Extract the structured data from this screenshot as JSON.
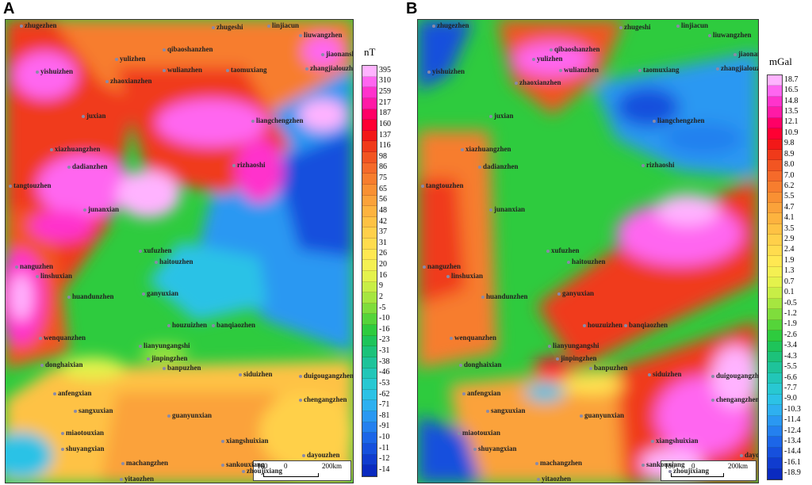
{
  "panel_a": {
    "letter": "A",
    "unit": "nT",
    "legend_values": [
      "395",
      "310",
      "259",
      "217",
      "187",
      "160",
      "137",
      "116",
      "98",
      "86",
      "75",
      "65",
      "56",
      "48",
      "42",
      "37",
      "31",
      "26",
      "20",
      "16",
      "9",
      "2",
      "-5",
      "-10",
      "-16",
      "-23",
      "-31",
      "-38",
      "-46",
      "-53",
      "-62",
      "-71",
      "-81",
      "-91",
      "-10",
      "-11",
      "-12",
      "-14"
    ],
    "legend_colors": [
      "#ffb3ff",
      "#ff66f0",
      "#ff33cc",
      "#ff1aa6",
      "#ff0066",
      "#ff0033",
      "#f21818",
      "#f03a1a",
      "#f25522",
      "#f56a2a",
      "#f77d2e",
      "#f99033",
      "#fba23a",
      "#fdb33f",
      "#fec244",
      "#ffd04a",
      "#ffdc4e",
      "#ffe852",
      "#f4f052",
      "#e4f24c",
      "#c8ee46",
      "#a6e640",
      "#7fdd3c",
      "#55d43a",
      "#2ecb3e",
      "#1ec45a",
      "#1cc27a",
      "#1ec39a",
      "#22c6b8",
      "#28c8d2",
      "#2cc2e6",
      "#2eb0f0",
      "#2a98f2",
      "#2480ef",
      "#1c66e8",
      "#1650dd",
      "#103ccf",
      "#0a2ac0"
    ],
    "places": [
      "zhugezhen",
      "zhugeshi",
      "linjiacun",
      "liuwangzhen",
      "jiaonanshi",
      "zhangjialouzhen",
      "qibaoshanzhen",
      "yulizhen",
      "wulianzhen",
      "taomuxiang",
      "yishuizhen",
      "zhaoxianzhen",
      "juxian",
      "liangchengzhen",
      "xiazhuangzhen",
      "dadianzhen",
      "rizhaoshi",
      "tangtouzhen",
      "junanxian",
      "xufuzhen",
      "haitouzhen",
      "nanguzhen",
      "linshuxian",
      "huandunzhen",
      "ganyuxian",
      "houzuizhen",
      "banqiaozhen",
      "wenquanzhen",
      "lianyungangshi",
      "jinpingzhen",
      "donghaixian",
      "banpuzhen",
      "siduizhen",
      "duigougangzhen",
      "anfengxian",
      "chengangzhen",
      "sangxuxian",
      "guanyunxian",
      "miaotouxian",
      "xiangshuixian",
      "dayouzhen",
      "shuyangxian",
      "sankouxiang",
      "machangzhen",
      "zhoujixiang",
      "yitaozhen"
    ],
    "scale": {
      "left": "100",
      "mid": "0",
      "right": "200km"
    }
  },
  "panel_b": {
    "letter": "B",
    "unit": "mGal",
    "legend_values": [
      "18.7",
      "16.5",
      "14.8",
      "13.5",
      "12.1",
      "10.9",
      "9.8",
      "8.9",
      "8.0",
      "7.0",
      "6.2",
      "5.5",
      "4.7",
      "4.1",
      "3.5",
      "2.9",
      "2.4",
      "1.9",
      "1.3",
      "0.7",
      "0.1",
      "-0.5",
      "-1.2",
      "-1.9",
      "-2.6",
      "-3.4",
      "-4.3",
      "-5.5",
      "-6.6",
      "-7.7",
      "-9.0",
      "-10.3",
      "-11.4",
      "-12.4",
      "-13.4",
      "-14.4",
      "-16.1",
      "-18.9"
    ],
    "legend_colors": [
      "#ffb3ff",
      "#ff66f0",
      "#ff33cc",
      "#ff1aa6",
      "#ff0066",
      "#ff0033",
      "#f21818",
      "#f03a1a",
      "#f25522",
      "#f56a2a",
      "#f77d2e",
      "#f99033",
      "#fba23a",
      "#fdb33f",
      "#fec244",
      "#ffd04a",
      "#ffdc4e",
      "#ffe852",
      "#f4f052",
      "#e4f24c",
      "#c8ee46",
      "#a6e640",
      "#7fdd3c",
      "#55d43a",
      "#2ecb3e",
      "#1ec45a",
      "#1cc27a",
      "#1ec39a",
      "#22c6b8",
      "#28c8d2",
      "#2cc2e6",
      "#2eb0f0",
      "#2a98f2",
      "#2480ef",
      "#1c66e8",
      "#1650dd",
      "#103ccf",
      "#0a2ac0"
    ],
    "places": [
      "zhugezhen",
      "zhugeshi",
      "linjiacun",
      "liuwangzhen",
      "jiaonanshi",
      "zhangjialouzhen",
      "qibaoshanzhen",
      "yulizhen",
      "wulianzhen",
      "taomuxiang",
      "yishuizhen",
      "zhaoxianzhen",
      "juxian",
      "liangchengzhen",
      "xiazhuangzhen",
      "dadianzhen",
      "rizhaoshi",
      "tangtouzhen",
      "junanxian",
      "xufuzhen",
      "haitouzhen",
      "nanguzhen",
      "linshuxian",
      "huandunzhen",
      "ganyuxian",
      "houzuizhen",
      "banqiaozhen",
      "wenquanzhen",
      "lianyungangshi",
      "jinpingzhen",
      "donghaixian",
      "banpuzhen",
      "siduizhen",
      "duigougangzhen",
      "anfengxian",
      "chengangzhen",
      "sangxuxian",
      "guanyunxian",
      "miaotouxian",
      "xiangshuixian",
      "dayouzhen",
      "shuyangxian",
      "sankouxiang",
      "machangzhen",
      "zhoujixiang",
      "yitaozhen"
    ],
    "scale": {
      "left": "100",
      "mid": "0",
      "right": "200km"
    }
  }
}
